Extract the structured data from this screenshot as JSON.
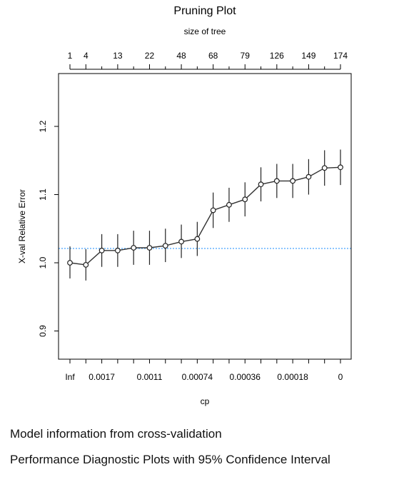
{
  "chart_data": {
    "type": "line",
    "title": "Pruning Plot",
    "top_axis_label": "size of tree",
    "xlabel": "cp",
    "ylabel": "X-val Relative Error",
    "top_tick_labels": [
      "1",
      "4",
      "13",
      "22",
      "48",
      "68",
      "79",
      "126",
      "149",
      "174"
    ],
    "bottom_tick_labels": [
      "Inf",
      "0.0017",
      "0.0011",
      "0.00074",
      "0.00036",
      "0.00018",
      "0"
    ],
    "ylim": [
      0.875,
      1.24
    ],
    "y_ticks": [
      0.9,
      1.0,
      1.1,
      1.2
    ],
    "y_tick_labels": [
      "0.9",
      "1.0",
      "1.1",
      "1.2"
    ],
    "reference_line": 1.021,
    "reference_color": "#3399ff",
    "grid": false,
    "series": [
      {
        "y": [
          1.0,
          0.997,
          1.018,
          1.018,
          1.022,
          1.022,
          1.025,
          1.031,
          1.035,
          1.077,
          1.085,
          1.093,
          1.115,
          1.12,
          1.12,
          1.126,
          1.139,
          1.14
        ],
        "lower": [
          0.977,
          0.974,
          0.994,
          0.994,
          0.997,
          0.997,
          1.001,
          1.007,
          1.01,
          1.051,
          1.06,
          1.068,
          1.09,
          1.095,
          1.095,
          1.1,
          1.113,
          1.114
        ],
        "upper": [
          1.024,
          1.02,
          1.042,
          1.042,
          1.047,
          1.047,
          1.05,
          1.056,
          1.06,
          1.103,
          1.11,
          1.118,
          1.14,
          1.145,
          1.145,
          1.152,
          1.165,
          1.166
        ]
      }
    ]
  },
  "captions": {
    "model_info": "Model information from cross-validation",
    "diagnostics": "Performance Diagnostic Plots with 95% Confidence Interval"
  }
}
